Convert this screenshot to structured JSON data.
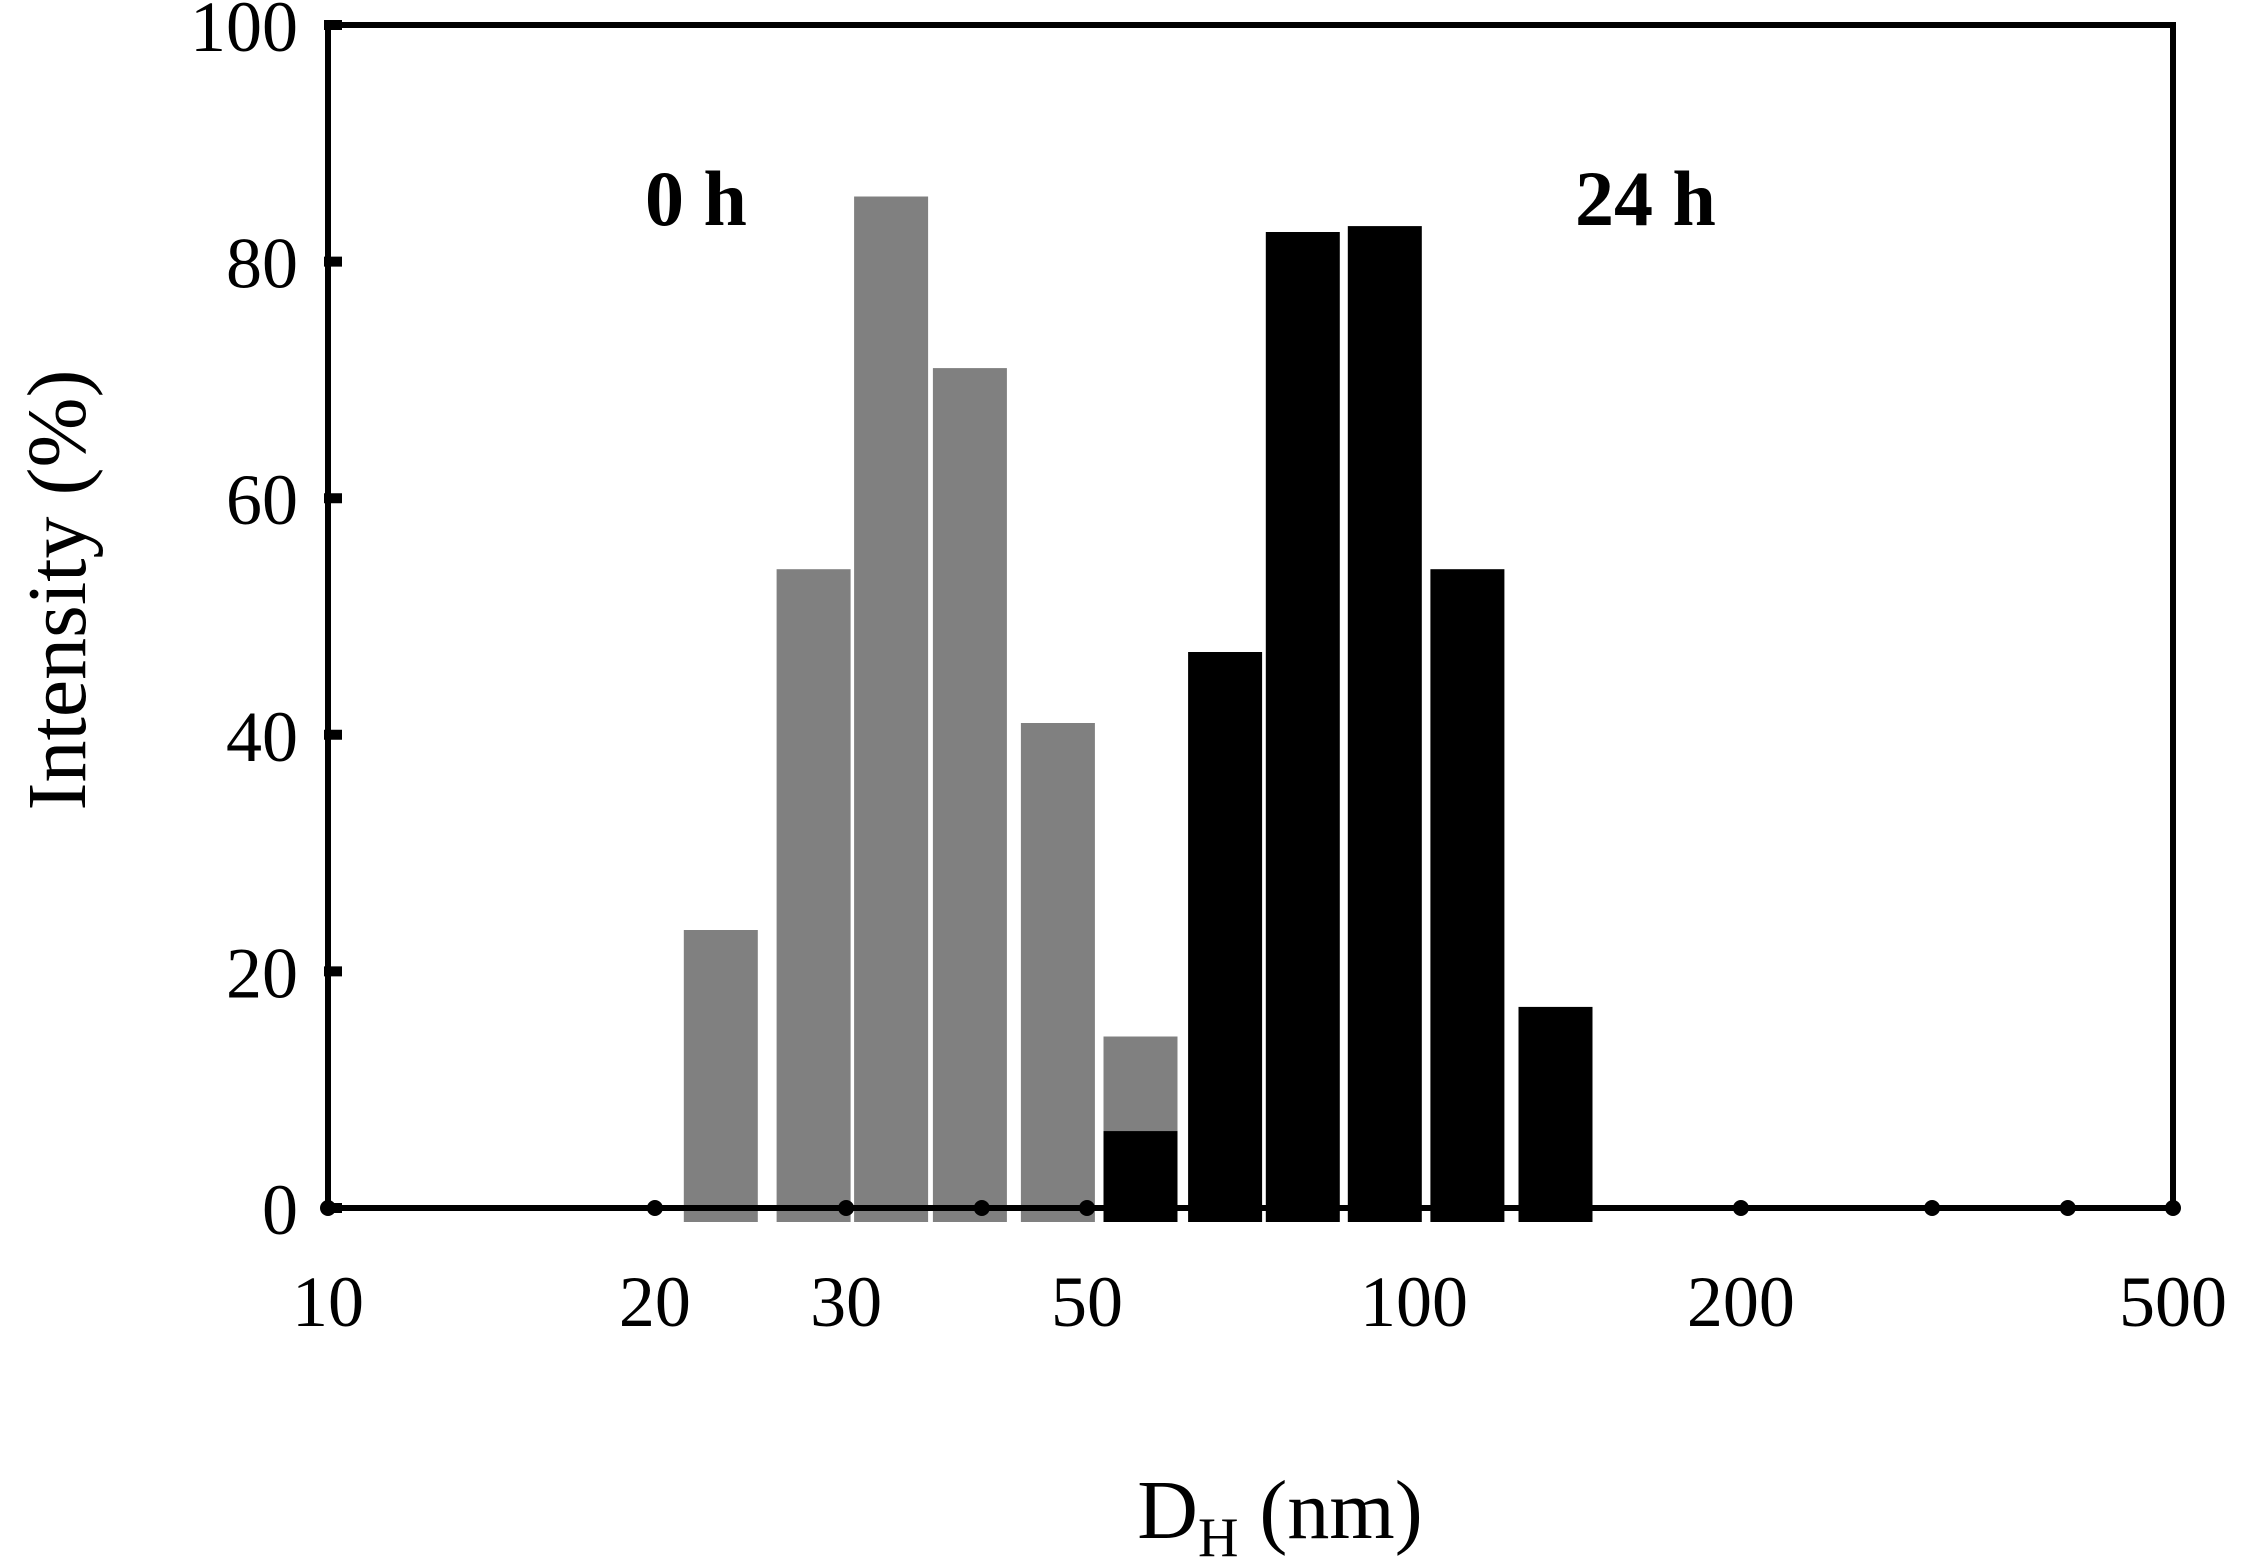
{
  "chart_data": {
    "type": "bar",
    "xscale": "log",
    "xlim": [
      10,
      500
    ],
    "ylim": [
      0,
      100
    ],
    "xticks": [
      10,
      20,
      30,
      50,
      100,
      200,
      500
    ],
    "xtick_labels": [
      "10",
      "20",
      "30",
      "50",
      "100",
      "200",
      "500"
    ],
    "yticks": [
      0,
      20,
      40,
      60,
      80,
      100
    ],
    "ytick_labels": [
      "0",
      "20",
      "40",
      "60",
      "80",
      "100"
    ],
    "xlabel_main": "D",
    "xlabel_sub": "H",
    "xlabel_unit": " (nm)",
    "ylabel": "Intensity (%)",
    "grid": false,
    "series": [
      {
        "name": "0 h",
        "color": "#808080",
        "x": [
          23,
          28,
          33,
          39,
          47,
          56
        ],
        "values": [
          23.5,
          54,
          85.5,
          71,
          41,
          14.5
        ]
      },
      {
        "name": "24 h",
        "color": "#000000",
        "x": [
          56,
          67,
          79,
          94,
          112,
          135
        ],
        "values": [
          6.5,
          47,
          82.5,
          83,
          54,
          17
        ]
      }
    ]
  }
}
